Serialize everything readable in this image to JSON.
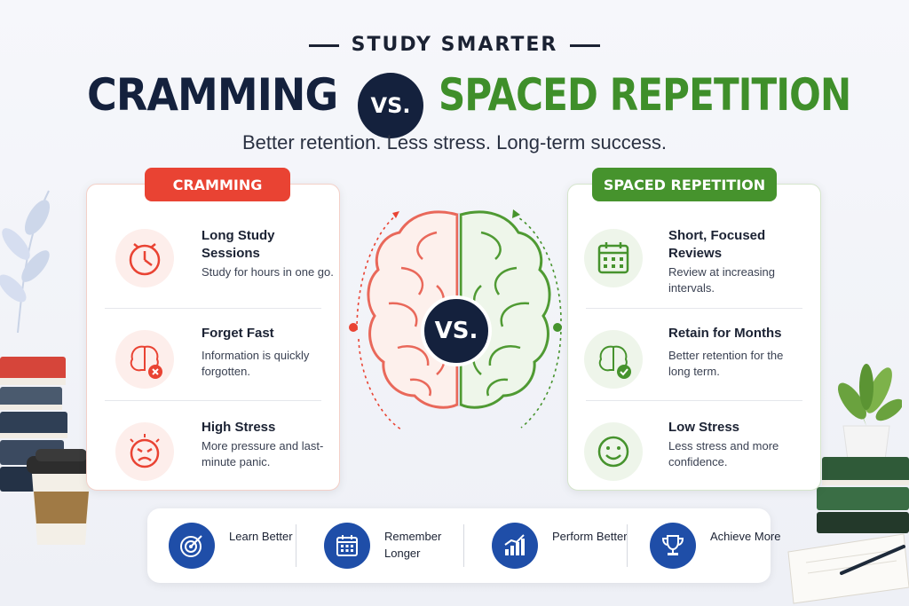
{
  "header": {
    "kicker": "STUDY SMARTER",
    "title_left": "CRAMMING",
    "title_vs": "VS.",
    "title_right": "SPACED REPETITION",
    "subtitle": "Better retention. Less stress. Long-term success."
  },
  "cramming": {
    "label": "CRAMMING",
    "accent": "#e94333",
    "items": [
      {
        "title": "Long Study Sessions",
        "desc": "Study for hours in one go.",
        "icon": "clock-icon"
      },
      {
        "title": "Forget Fast",
        "desc": "Information is quickly forgotten.",
        "icon": "brain-x-icon"
      },
      {
        "title": "High Stress",
        "desc": "More pressure and last-minute panic.",
        "icon": "angry-face-icon"
      }
    ]
  },
  "spaced": {
    "label": "SPACED REPETITION",
    "accent": "#46932d",
    "items": [
      {
        "title": "Short, Focused Reviews",
        "desc": "Review at increasing intervals.",
        "icon": "calendar-icon"
      },
      {
        "title": "Retain for Months",
        "desc": "Better retention for the long term.",
        "icon": "brain-check-icon"
      },
      {
        "title": "Low Stress",
        "desc": "Less stress and more confidence.",
        "icon": "smile-face-icon"
      }
    ]
  },
  "center": {
    "vs": "VS."
  },
  "benefits": [
    {
      "label": "Learn Better",
      "icon": "target-icon"
    },
    {
      "label": "Remember Longer",
      "icon": "calendar-icon"
    },
    {
      "label": "Perform Better",
      "icon": "growth-chart-icon"
    },
    {
      "label": "Achieve More",
      "icon": "trophy-icon"
    }
  ],
  "colors": {
    "navy": "#14213d",
    "red": "#e94333",
    "green": "#46932d",
    "blue": "#1f4ea8"
  }
}
